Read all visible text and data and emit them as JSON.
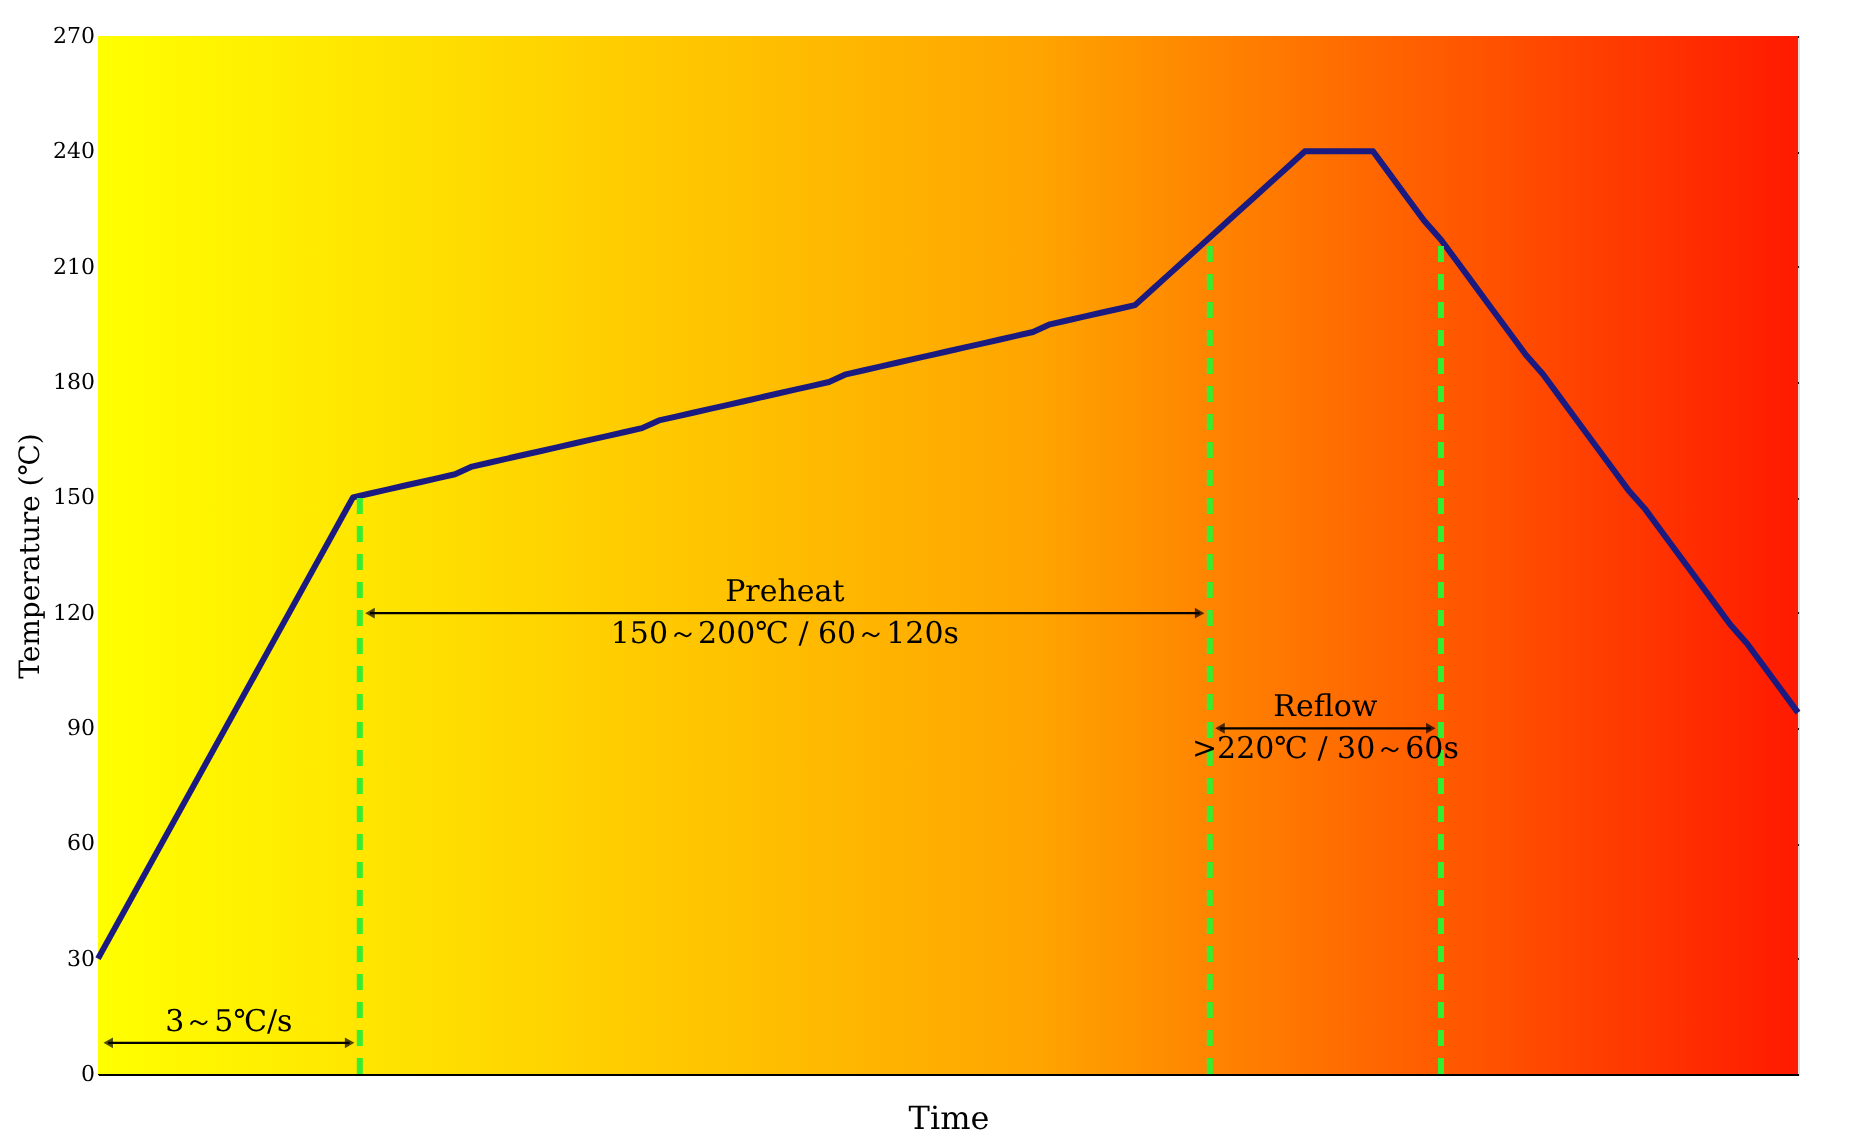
{
  "chart_data": {
    "type": "line",
    "xlabel": "Time",
    "ylabel": "Temperature (℃)",
    "categories": [
      null,
      null,
      null,
      null,
      null,
      null,
      null,
      null,
      null,
      null,
      null,
      null,
      null,
      null,
      null,
      null,
      null,
      null,
      null,
      null,
      null,
      null,
      null,
      null,
      null,
      null,
      null,
      null,
      null,
      null,
      null,
      null,
      null,
      null,
      null,
      null,
      null,
      null,
      null,
      null,
      null,
      null,
      null,
      null,
      null,
      null,
      null,
      null,
      null,
      null,
      null,
      null,
      null,
      null,
      null,
      null,
      null,
      null,
      null,
      null,
      null,
      null,
      null,
      null,
      null,
      null,
      null,
      null,
      null,
      null,
      null,
      null,
      null,
      null,
      null,
      null,
      null,
      null,
      null,
      null,
      null,
      null,
      null,
      null,
      null,
      null,
      null,
      null,
      null,
      null,
      null,
      null,
      null,
      null,
      null,
      null,
      null,
      null,
      null,
      null,
      null
    ],
    "series": [
      {
        "color": "#1a1a80",
        "values": [
          30,
          38,
          46,
          54,
          62,
          70,
          78,
          86,
          94,
          102,
          110,
          118,
          126,
          134,
          142,
          150,
          151,
          152,
          153,
          154,
          155,
          156,
          158,
          159,
          160,
          161,
          162,
          163,
          164,
          165,
          166,
          167,
          168,
          170,
          171,
          172,
          173,
          174,
          175,
          176,
          177,
          178,
          179,
          180,
          182,
          183,
          184,
          185,
          186,
          187,
          188,
          189,
          190,
          191,
          192,
          193,
          195,
          196,
          197,
          198,
          199,
          200,
          204,
          208,
          212,
          216,
          220,
          224,
          228,
          232,
          236,
          240,
          240,
          240,
          240,
          240,
          234,
          228,
          222,
          217,
          211,
          205,
          199,
          193,
          187,
          182,
          176,
          170,
          164,
          158,
          152,
          147,
          141,
          135,
          129,
          123,
          117,
          112,
          106,
          100,
          94
        ]
      }
    ],
    "ylim": [
      0,
      270
    ],
    "yticks": [
      0,
      30,
      60,
      90,
      120,
      150,
      180,
      210,
      240,
      270
    ],
    "tick_labels": "y",
    "grid": "y",
    "marker": "none",
    "line_style": "solid",
    "annotations": [
      "3～5℃/s",
      "Preheat\n150～200℃ / 60～120s",
      "Reflow\n>220℃ / 30～60s"
    ]
  }
}
